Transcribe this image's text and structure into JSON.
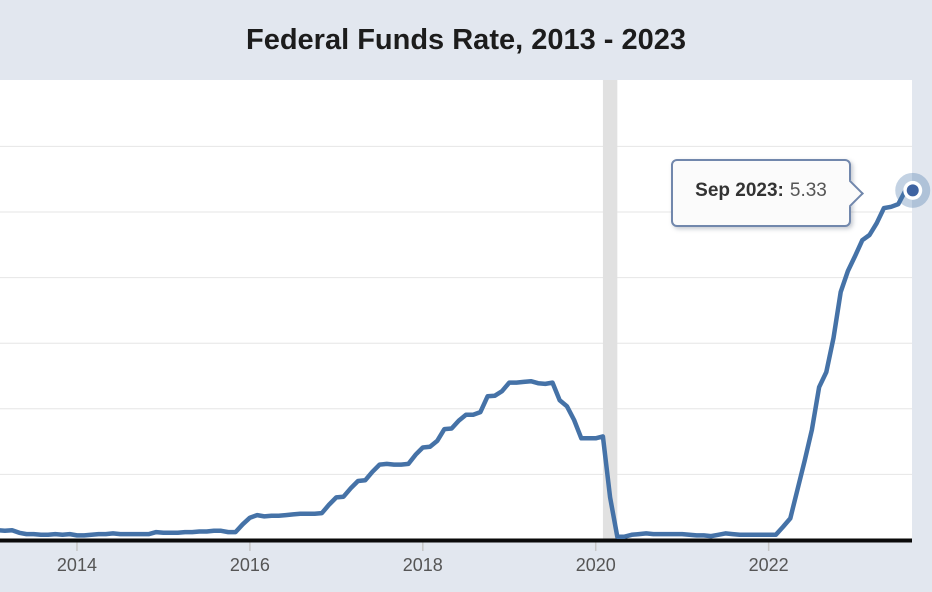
{
  "title": "Federal Funds Rate, 2013 - 2023",
  "tooltip": {
    "label": "Sep 2023:",
    "value": "5.33"
  },
  "x_axis": {
    "ticks": [
      "2014",
      "2016",
      "2018",
      "2020",
      "2022"
    ]
  },
  "colors": {
    "page_bg": "#e2e7ef",
    "plot_bg": "#ffffff",
    "gridline": "#e6e6e6",
    "recession_band": "#e1e1e1",
    "line": "#4572a7",
    "marker_dot": "#3e63a1",
    "marker_ring": "#ffffff",
    "marker_halo": "rgba(69,114,167,0.32)",
    "axis": "#0a0a0a",
    "tick_mark": "#c6c6c6",
    "tick_label": "#555555",
    "title": "#1c1c1c",
    "tooltip_bg": "#fbfbfb",
    "tooltip_border": "#7187ac",
    "tooltip_label": "#333333",
    "tooltip_value": "#555555"
  },
  "chart_data": {
    "type": "line",
    "title": "Federal Funds Rate, 2013 - 2023",
    "xlabel": "",
    "ylabel": "",
    "ylim": [
      0,
      7
    ],
    "grid_step": 1,
    "grid": "horizontal",
    "legend": "none",
    "x_tick_labels": [
      "2014",
      "2016",
      "2018",
      "2020",
      "2022"
    ],
    "shaded_region": {
      "start": "2020-02",
      "end": "2020-04"
    },
    "highlight": {
      "month": "2023-09",
      "value": 5.33
    },
    "series": [
      {
        "name": "Federal Funds Rate",
        "frequency": "monthly",
        "start": "2013-01",
        "end": "2023-09",
        "values": [
          0.14,
          0.15,
          0.14,
          0.15,
          0.11,
          0.09,
          0.09,
          0.08,
          0.08,
          0.09,
          0.08,
          0.09,
          0.07,
          0.07,
          0.08,
          0.09,
          0.09,
          0.1,
          0.09,
          0.09,
          0.09,
          0.09,
          0.09,
          0.12,
          0.11,
          0.11,
          0.11,
          0.12,
          0.12,
          0.13,
          0.13,
          0.14,
          0.14,
          0.12,
          0.12,
          0.24,
          0.34,
          0.38,
          0.36,
          0.37,
          0.37,
          0.38,
          0.39,
          0.4,
          0.4,
          0.4,
          0.41,
          0.54,
          0.65,
          0.66,
          0.79,
          0.9,
          0.91,
          1.04,
          1.15,
          1.16,
          1.15,
          1.15,
          1.16,
          1.3,
          1.41,
          1.42,
          1.51,
          1.69,
          1.7,
          1.82,
          1.91,
          1.91,
          1.95,
          2.19,
          2.2,
          2.27,
          2.4,
          2.4,
          2.41,
          2.42,
          2.39,
          2.38,
          2.4,
          2.13,
          2.04,
          1.83,
          1.55,
          1.55,
          1.55,
          1.58,
          0.65,
          0.05,
          0.05,
          0.08,
          0.09,
          0.1,
          0.09,
          0.09,
          0.09,
          0.09,
          0.09,
          0.08,
          0.07,
          0.07,
          0.06,
          0.08,
          0.1,
          0.09,
          0.08,
          0.08,
          0.08,
          0.08,
          0.08,
          0.08,
          0.2,
          0.33,
          0.77,
          1.21,
          1.68,
          2.33,
          2.56,
          3.08,
          3.78,
          4.1,
          4.33,
          4.57,
          4.65,
          4.83,
          5.06,
          5.08,
          5.12,
          5.33,
          5.33
        ]
      }
    ]
  }
}
